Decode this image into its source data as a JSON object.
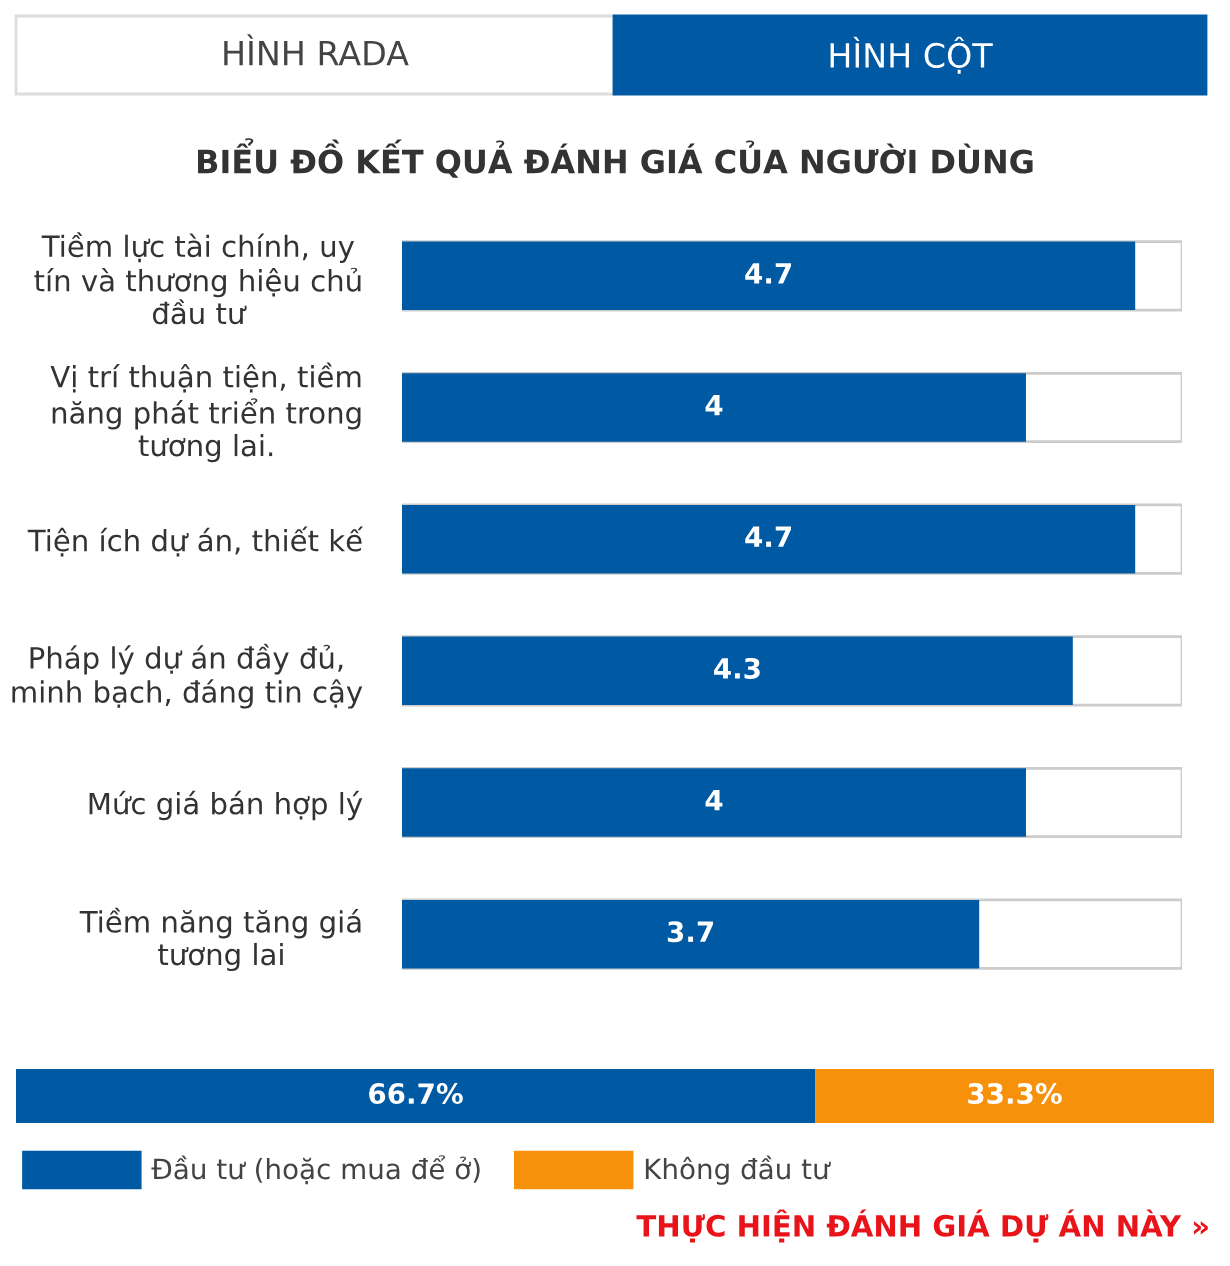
{
  "chart_data": [
    {
      "type": "bar",
      "orientation": "horizontal",
      "title": "BIỂU ĐỒ KẾT QUẢ ĐÁNH GIÁ CỦA NGƯỜI DÙNG",
      "annotations": [
        "HÌNH RADA",
        "HÌNH CỘT"
      ],
      "categories": [
        "Tiềm lực tài chính, uy\ntín và thương hiệu chủ\nđầu tư",
        "Vị trí thuận tiện, tiềm\nnăng phát triển trong\ntương lai.",
        "Tiện ích dự án, thiết kế",
        "Pháp lý dự án đầy đủ,\nminh bạch, đáng tin cậy",
        "Mức giá bán hợp lý",
        "Tiềm năng tăng giá\ntương lai"
      ],
      "values": [
        4.7,
        4,
        4.7,
        4.3,
        4,
        3.7
      ],
      "color": "#005aa3",
      "xlim": [
        0,
        5
      ],
      "tick_labels": "y",
      "data_labels": true,
      "grid": false,
      "legend": false
    },
    {
      "type": "bar",
      "orientation": "horizontal",
      "stacked": true,
      "categories": [
        null
      ],
      "annotations": [
        "THỰC HIỆN ĐÁNH GIÁ DỰ ÁN NÀY »"
      ],
      "series": [
        {
          "name": "Đầu tư (hoặc mua để ở)",
          "color": "#005aa3",
          "values": [
            66.7
          ],
          "value_labels": [
            "66.7%"
          ]
        },
        {
          "name": "Không đầu tư",
          "color": "#f7900a",
          "values": [
            33.3
          ],
          "value_labels": [
            "33.3%"
          ]
        }
      ],
      "xlim": [
        0,
        100
      ],
      "tick_labels": false,
      "grid": false,
      "legend": "bottom left"
    }
  ]
}
